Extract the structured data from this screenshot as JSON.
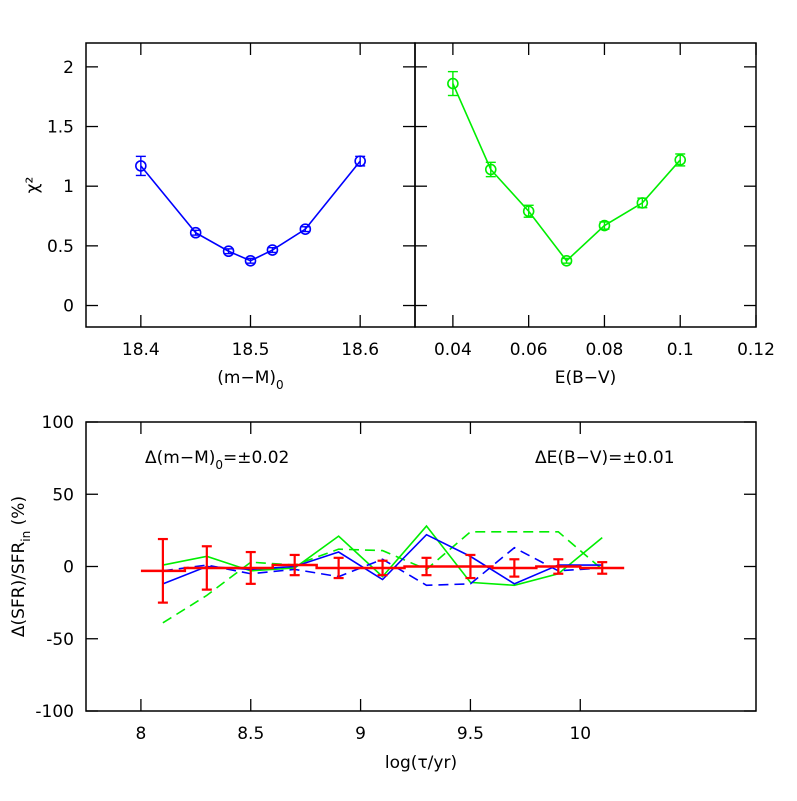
{
  "chart_data": [
    {
      "type": "line",
      "xlabel": {
        "text": "(m−M)",
        "sub": "0"
      },
      "ylabel": {
        "text": "χ²"
      },
      "xlim": [
        18.35,
        18.65
      ],
      "xticks": [
        18.4,
        18.5,
        18.6
      ],
      "ylim": [
        -0.18,
        2.2
      ],
      "yticks": [
        0,
        0.5,
        1,
        1.5,
        2
      ],
      "x": [
        18.4,
        18.45,
        18.48,
        18.5,
        18.52,
        18.55,
        18.6
      ],
      "series": [
        {
          "color": "#0000ff",
          "values": [
            1.17,
            0.61,
            0.455,
            0.375,
            0.465,
            0.64,
            1.21
          ],
          "errors": [
            0.08,
            0.02,
            0.02,
            0.02,
            0.02,
            0.02,
            0.04
          ]
        }
      ]
    },
    {
      "type": "line",
      "xlabel": {
        "text": "E(B−V)"
      },
      "xlim": [
        0.03,
        0.12
      ],
      "xticks": [
        0.04,
        0.06,
        0.08,
        0.1,
        0.12
      ],
      "ylim": [
        -0.18,
        2.2
      ],
      "yticks": [
        0,
        0.5,
        1,
        1.5,
        2
      ],
      "x": [
        0.04,
        0.05,
        0.06,
        0.07,
        0.08,
        0.09,
        0.1
      ],
      "series": [
        {
          "color": "#00ee00",
          "values": [
            1.86,
            1.14,
            0.79,
            0.375,
            0.67,
            0.86,
            1.22
          ],
          "errors": [
            0.1,
            0.06,
            0.05,
            0.02,
            0.03,
            0.04,
            0.05
          ]
        }
      ]
    },
    {
      "type": "line",
      "xlabel": {
        "text": "log(τ/yr)"
      },
      "ylabel": {
        "text": "Δ(SFR)/SFR",
        "sub": "in",
        "after": " (%)"
      },
      "annotations": [
        {
          "text": "Δ(m−M)",
          "sub": "0",
          "after": "=±0.02"
        },
        {
          "text": "ΔE(B−V)=±0.01"
        }
      ],
      "xlim": [
        7.75,
        10.8
      ],
      "xticks": [
        8,
        8.5,
        9,
        9.5,
        10
      ],
      "ylim": [
        -100,
        100
      ],
      "yticks": [
        -100,
        -50,
        0,
        50,
        100
      ],
      "x": [
        8.1,
        8.3,
        8.5,
        8.7,
        8.9,
        9.1,
        9.3,
        9.5,
        9.7,
        9.9,
        10.1
      ],
      "series": [
        {
          "color": "#00ee00",
          "dash": true,
          "values": [
            -39,
            -20,
            3,
            1,
            12,
            11,
            -2,
            24,
            24,
            24,
            -2
          ]
        },
        {
          "color": "#00ee00",
          "values": [
            1,
            7,
            -3,
            -1,
            21,
            -7,
            28,
            -11,
            -13,
            -5,
            20
          ]
        },
        {
          "color": "#0000ff",
          "dash": true,
          "values": [
            -3,
            1,
            -5,
            -2,
            -7,
            5,
            -13,
            -12,
            13,
            -3,
            -1
          ]
        },
        {
          "color": "#0000ff",
          "values": [
            -12,
            0,
            -2,
            0,
            10,
            -9,
            22,
            7,
            -12,
            1,
            1
          ]
        },
        {
          "color": "#ff0000",
          "step": true,
          "values": [
            -3,
            -1,
            -1,
            1,
            -1,
            -1,
            0,
            0,
            -1,
            0,
            -1
          ],
          "errors": [
            22,
            15,
            11,
            7,
            7,
            5,
            6,
            8,
            6,
            5,
            4
          ]
        }
      ]
    }
  ]
}
